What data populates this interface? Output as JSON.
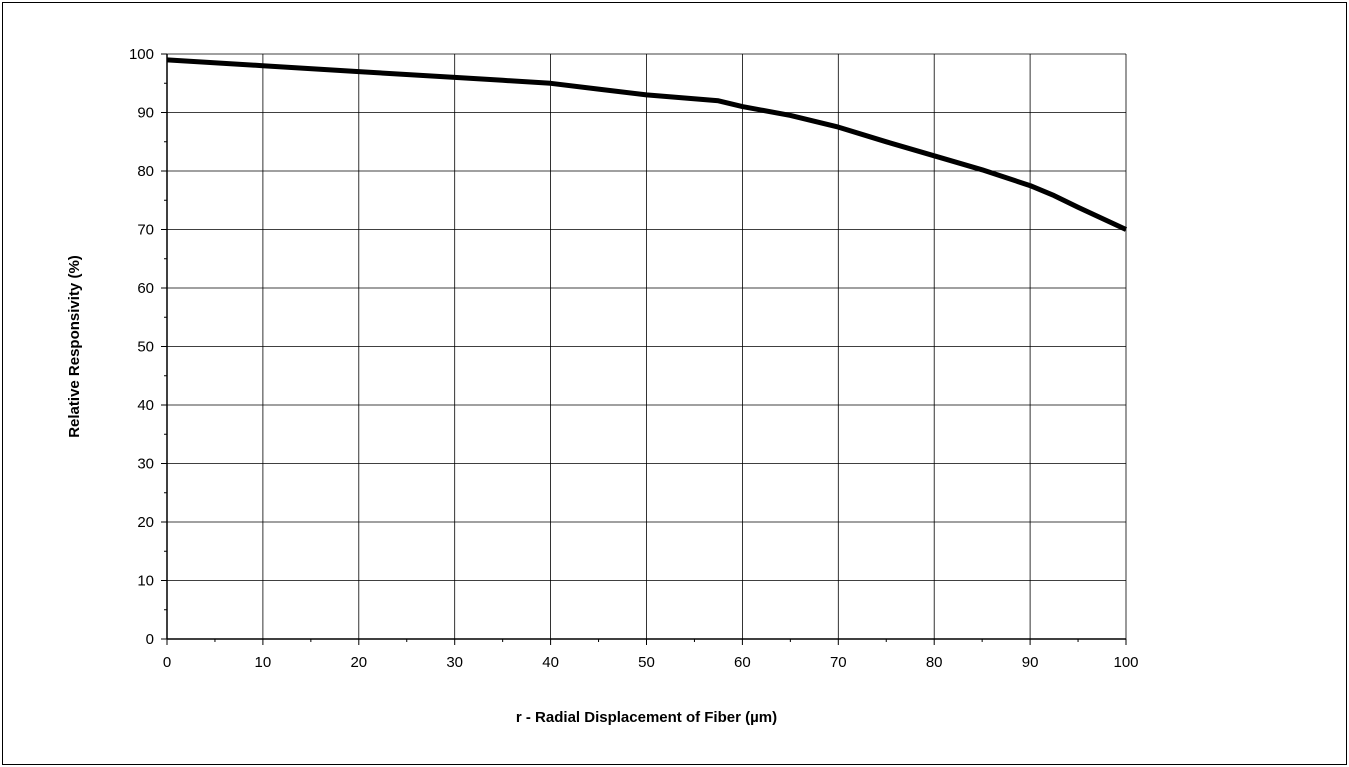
{
  "chart_data": {
    "type": "line",
    "title": "",
    "xlabel": "r - Radial Displacement of Fiber (µm)",
    "ylabel": "Relative Responsivity (%)",
    "xlim": [
      0,
      100
    ],
    "ylim": [
      0,
      100
    ],
    "x_ticks": [
      0,
      10,
      20,
      30,
      40,
      50,
      60,
      70,
      80,
      90,
      100
    ],
    "y_ticks": [
      0,
      10,
      20,
      30,
      40,
      50,
      60,
      70,
      80,
      90,
      100
    ],
    "grid": true,
    "legend": "none",
    "line_color": "#000000",
    "series": [
      {
        "x": [
          0,
          10,
          20,
          30,
          35,
          40,
          45,
          50,
          57.5,
          60,
          65,
          70,
          75,
          80,
          85,
          90,
          92.5,
          95,
          100
        ],
        "values": [
          99,
          98,
          97,
          96,
          95.5,
          95,
          94,
          93,
          92,
          91,
          89.5,
          87.5,
          85,
          82.6,
          80.2,
          77.5,
          75.8,
          73.8,
          70
        ]
      }
    ]
  }
}
